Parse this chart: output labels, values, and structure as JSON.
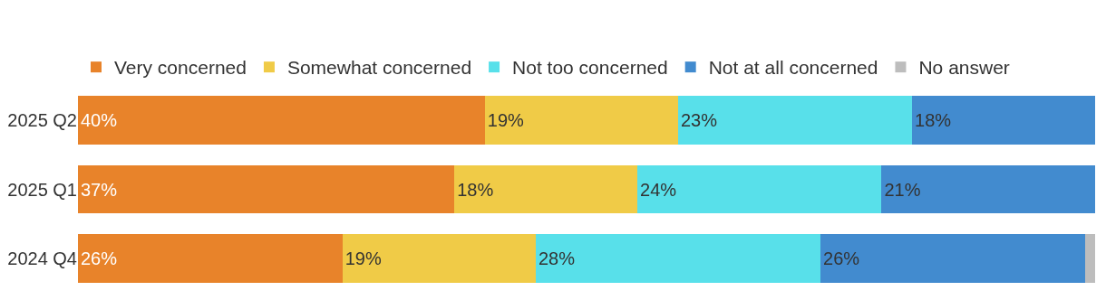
{
  "chart_data": {
    "type": "bar",
    "orientation": "horizontal",
    "stacked": true,
    "legend": "top left",
    "tick_labels": "y",
    "xlim": [
      0,
      100
    ],
    "categories": [
      "2025 Q2",
      "2025 Q1",
      "2024 Q4"
    ],
    "series": [
      {
        "name": "Very concerned",
        "color": "#e8832a",
        "values": [
          40,
          37,
          26
        ],
        "value_labels": [
          "40%",
          "37%",
          "26%"
        ]
      },
      {
        "name": "Somewhat concerned",
        "color": "#f0cb47",
        "values": [
          19,
          18,
          19
        ],
        "value_labels": [
          "19%",
          "18%",
          "19%"
        ]
      },
      {
        "name": "Not too concerned",
        "color": "#58e0ea",
        "values": [
          23,
          24,
          28
        ],
        "value_labels": [
          "23%",
          "24%",
          "28%"
        ]
      },
      {
        "name": "Not at all concerned",
        "color": "#428bcf",
        "values": [
          18,
          21,
          26
        ],
        "value_labels": [
          "18%",
          "21%",
          "26%"
        ]
      },
      {
        "name": "No answer",
        "color": "#bdbdbd",
        "values": [
          0,
          0,
          1
        ],
        "value_labels": [
          null,
          null,
          null
        ]
      }
    ]
  }
}
